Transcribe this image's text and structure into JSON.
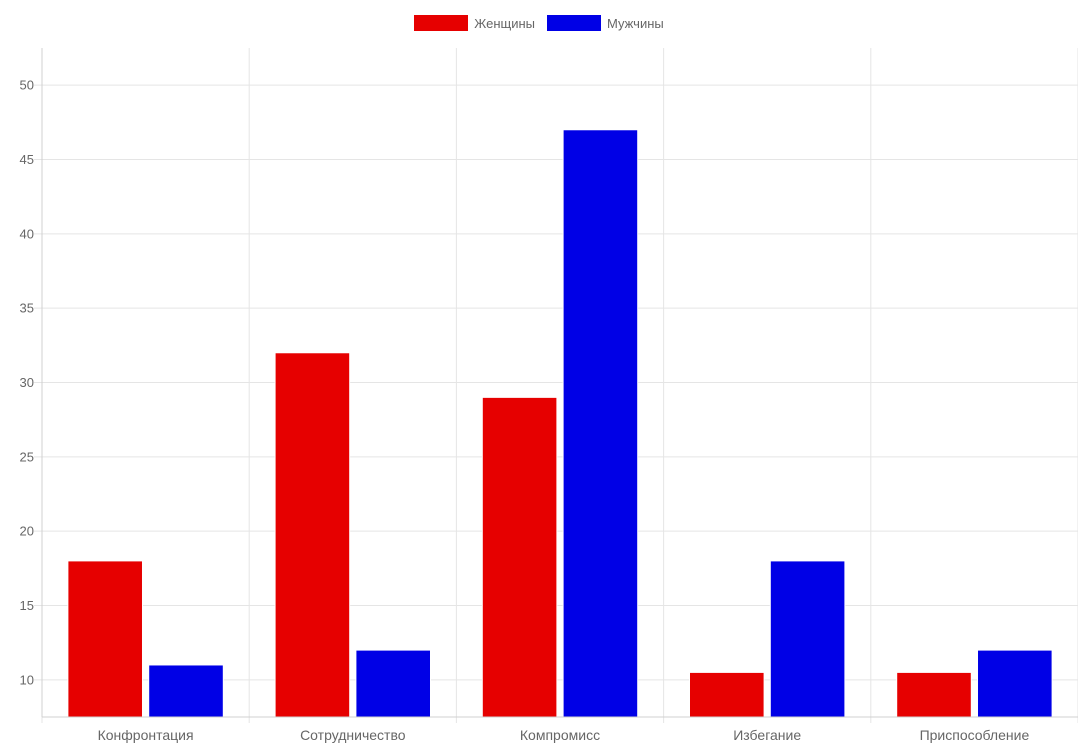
{
  "chart_data": {
    "type": "bar",
    "categories": [
      "Конфронтация",
      "Сотрудничество",
      "Компромисс",
      "Избегание",
      "Приспособление"
    ],
    "series": [
      {
        "name": "Женщины",
        "color": "#e60000",
        "values": [
          18,
          32,
          29,
          10.5,
          10.5
        ]
      },
      {
        "name": "Мужчины",
        "color": "#0000e6",
        "values": [
          11,
          12,
          47,
          18,
          12
        ]
      }
    ],
    "yticks": [
      10,
      15,
      20,
      25,
      30,
      35,
      40,
      45,
      50
    ],
    "ylim": [
      7.5,
      52.5
    ],
    "grid": true,
    "legend_position": "top-center"
  }
}
